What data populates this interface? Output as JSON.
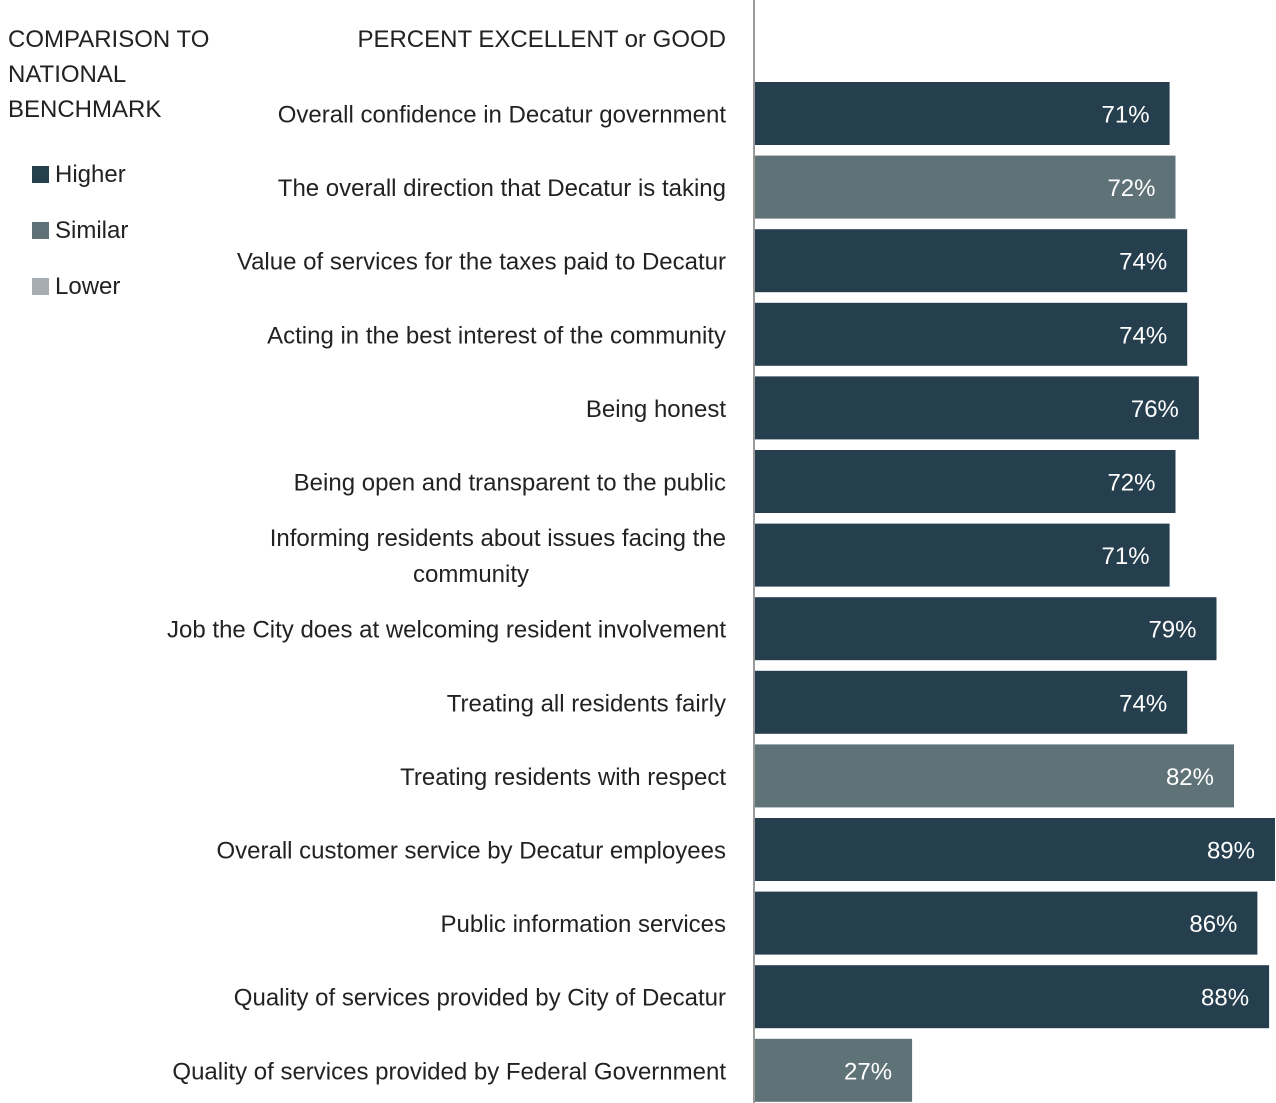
{
  "legend": {
    "title_lines": [
      "COMPARISON TO",
      "NATIONAL",
      "BENCHMARK"
    ],
    "items": [
      {
        "label": "Higher",
        "color": "#263f4f"
      },
      {
        "label": "Similar",
        "color": "#5f7278"
      },
      {
        "label": "Lower",
        "color": "#a6adb3"
      }
    ]
  },
  "chart_data": {
    "type": "bar",
    "orientation": "horizontal",
    "column_header": "PERCENT EXCELLENT or GOOD",
    "xlim": [
      0,
      89
    ],
    "categories": [
      [
        "Overall confidence in Decatur government"
      ],
      [
        "The overall direction that Decatur is taking"
      ],
      [
        "Value of services for the taxes paid to Decatur"
      ],
      [
        "Acting in the best interest of the community"
      ],
      [
        "Being honest"
      ],
      [
        "Being open and transparent to the public"
      ],
      [
        "Informing residents about issues facing the",
        "community"
      ],
      [
        "Job the City does at welcoming resident involvement"
      ],
      [
        "Treating all residents fairly"
      ],
      [
        "Treating residents with respect"
      ],
      [
        "Overall customer service by Decatur employees"
      ],
      [
        "Public information services"
      ],
      [
        "Quality of services provided by City of Decatur"
      ],
      [
        "Quality of services provided by Federal Government"
      ]
    ],
    "values": [
      71,
      72,
      74,
      74,
      76,
      72,
      71,
      79,
      74,
      82,
      89,
      86,
      88,
      27
    ],
    "value_labels": [
      "71%",
      "72%",
      "74%",
      "74%",
      "76%",
      "72%",
      "71%",
      "79%",
      "74%",
      "82%",
      "89%",
      "86%",
      "88%",
      "27%"
    ],
    "benchmark": [
      "Higher",
      "Similar",
      "Higher",
      "Higher",
      "Higher",
      "Higher",
      "Higher",
      "Higher",
      "Higher",
      "Similar",
      "Higher",
      "Higher",
      "Higher",
      "Similar"
    ],
    "colors": {
      "Higher": "#263f4f",
      "Similar": "#5f7278",
      "Lower": "#a6adb3",
      "axis": "#9a9a9a",
      "label_text": "#ffffff"
    }
  }
}
